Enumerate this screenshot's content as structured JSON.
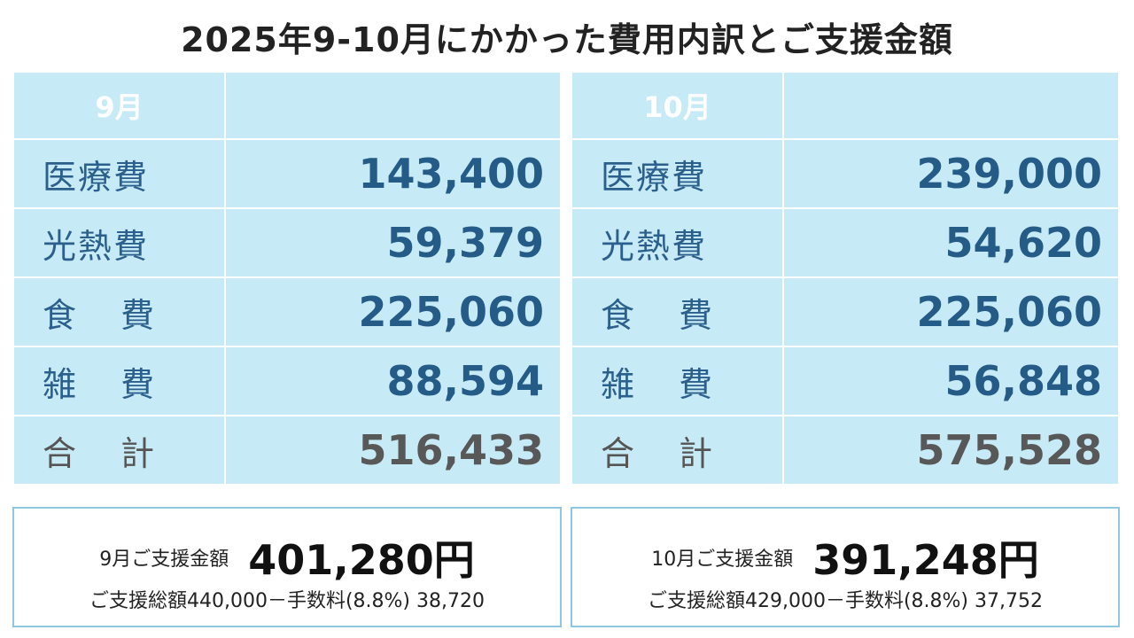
{
  "title": "2025年9-10月にかかった費用内訳とご支援金額",
  "september": {
    "month": "9月",
    "rows": [
      {
        "label": "医療費",
        "value": "143,400"
      },
      {
        "label": "光熱費",
        "value": "59,379"
      },
      {
        "label": "食費",
        "value": "225,060"
      },
      {
        "label": "雑費",
        "value": "88,594"
      },
      {
        "label": "合計",
        "value": "516,433"
      }
    ],
    "support_label": "9月ご支援金額",
    "support_amount": "401,280円",
    "support_detail": "ご支援総額440,000－手数料(8.8%) 38,720"
  },
  "october": {
    "month": "10月",
    "rows": [
      {
        "label": "医療費",
        "value": "239,000"
      },
      {
        "label": "光熱費",
        "value": "54,620"
      },
      {
        "label": "食費",
        "value": "225,060"
      },
      {
        "label": "雑費",
        "value": "56,848"
      },
      {
        "label": "合計",
        "value": "575,528"
      }
    ],
    "support_label": "10月ご支援金額",
    "support_amount": "391,248円",
    "support_detail": "ご支援総額429,000－手数料(8.8%) 37,752"
  },
  "colors": {
    "cell_background": "#c6ebf6",
    "value_blue": "#245b87",
    "label_blue": "#2b5f8c",
    "total_gray": "#585858",
    "box_border": "#8cc8e0"
  }
}
